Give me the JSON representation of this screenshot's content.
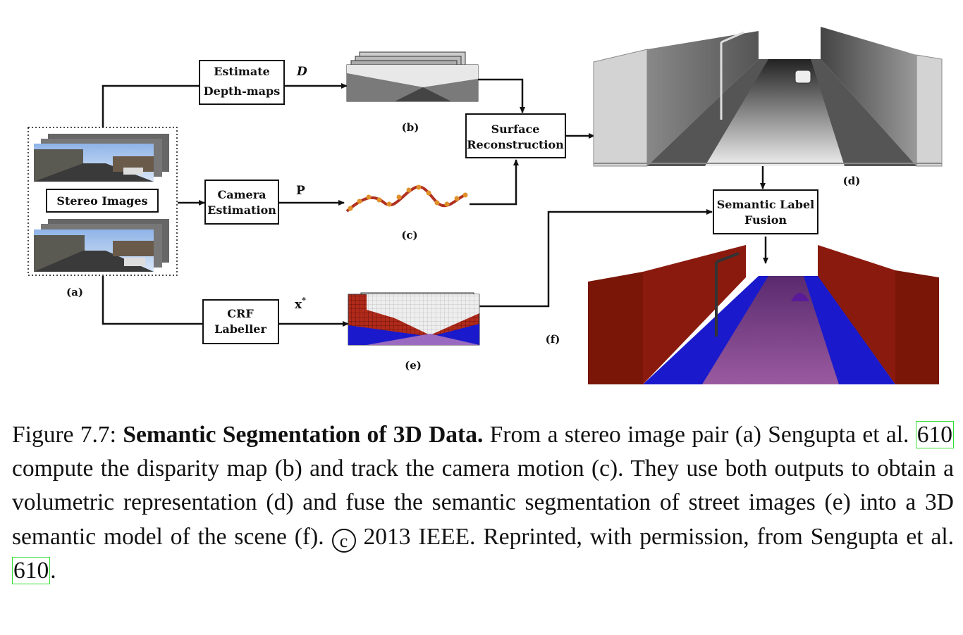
{
  "figure": {
    "boxes": {
      "estimate": [
        "Estimate",
        "Depth-maps"
      ],
      "camera": [
        "Camera",
        "Estimation"
      ],
      "crf": [
        "CRF",
        "Labeller"
      ],
      "surface": [
        "Surface",
        "Reconstruction"
      ],
      "fusion": [
        "Semantic Label",
        "Fusion"
      ],
      "stereo": "Stereo Images"
    },
    "symbols": {
      "d": "D",
      "p": "P",
      "x": "x",
      "xsup": "*"
    },
    "sublabels": {
      "a": "(a)",
      "b": "(b)",
      "c": "(c)",
      "d": "(d)",
      "e": "(e)",
      "f": "(f)"
    }
  },
  "caption": {
    "prefix": "Figure 7.7:",
    "title": "Semantic Segmentation of 3D Data.",
    "part1": "From a stereo image pair (a) Sengupta et al.",
    "cite1": "610",
    "part2": "compute the disparity map (b) and track the camera motion (c). They use both outputs to obtain a volumetric representation (d) and fuse the semantic segmentation of street images (e) into a 3D semantic model of the scene (f).",
    "copyright_symbol": "c",
    "part3": "2013 IEEE. Reprinted, with permission, from Sengupta et al.",
    "cite2": "610",
    "end": "."
  },
  "colors": {
    "wall_red": "#8b1a0e",
    "sidewalk_blue": "#1a1acc",
    "road_purple": "#7a4a8a",
    "grey_wall": "#9a9a9a"
  }
}
